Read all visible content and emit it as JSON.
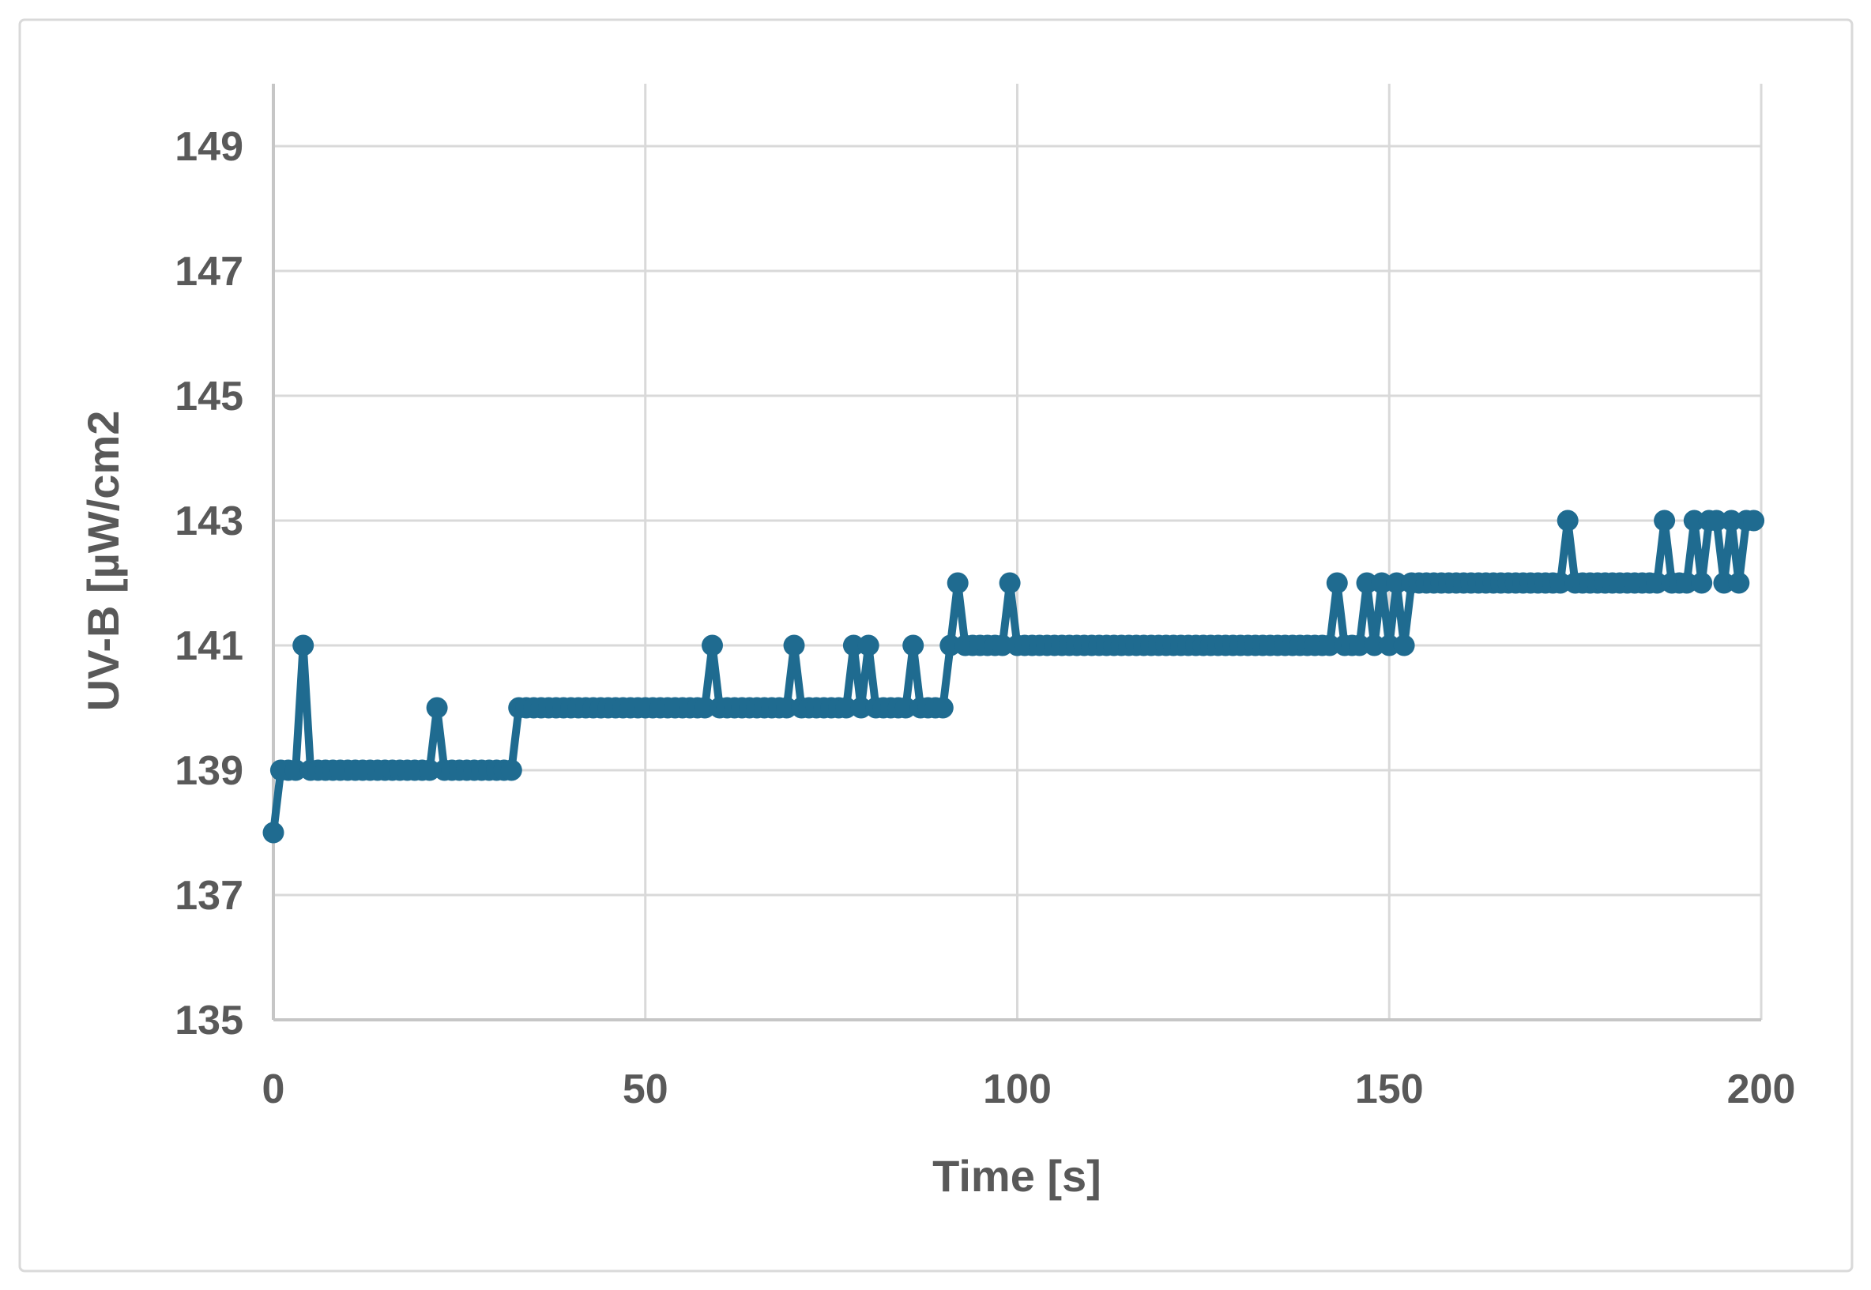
{
  "chart_data": {
    "type": "line",
    "title": "",
    "xlabel": "Time [s]",
    "ylabel": "UV-B [µW/cm2",
    "x_start": 0,
    "x_step": 1,
    "xlim": [
      0,
      200
    ],
    "ylim": [
      135,
      150
    ],
    "x_ticks": [
      "0",
      "50",
      "100",
      "150",
      "200"
    ],
    "x_tick_values": [
      0,
      50,
      100,
      150,
      200
    ],
    "y_ticks": [
      "135",
      "137",
      "139",
      "141",
      "143",
      "145",
      "147",
      "149"
    ],
    "y_tick_values": [
      135,
      137,
      139,
      141,
      143,
      145,
      147,
      149
    ],
    "grid": "both",
    "legend_position": "none",
    "marker": "circle",
    "values": [
      138,
      139,
      139,
      139,
      141,
      139,
      139,
      139,
      139,
      139,
      139,
      139,
      139,
      139,
      139,
      139,
      139,
      139,
      139,
      139,
      139,
      139,
      140,
      139,
      139,
      139,
      139,
      139,
      139,
      139,
      139,
      139,
      139,
      140,
      140,
      140,
      140,
      140,
      140,
      140,
      140,
      140,
      140,
      140,
      140,
      140,
      140,
      140,
      140,
      140,
      140,
      140,
      140,
      140,
      140,
      140,
      140,
      140,
      140,
      141,
      140,
      140,
      140,
      140,
      140,
      140,
      140,
      140,
      140,
      140,
      141,
      140,
      140,
      140,
      140,
      140,
      140,
      140,
      141,
      140,
      141,
      140,
      140,
      140,
      140,
      140,
      141,
      140,
      140,
      140,
      140,
      141,
      142,
      141,
      141,
      141,
      141,
      141,
      141,
      142,
      141,
      141,
      141,
      141,
      141,
      141,
      141,
      141,
      141,
      141,
      141,
      141,
      141,
      141,
      141,
      141,
      141,
      141,
      141,
      141,
      141,
      141,
      141,
      141,
      141,
      141,
      141,
      141,
      141,
      141,
      141,
      141,
      141,
      141,
      141,
      141,
      141,
      141,
      141,
      141,
      141,
      141,
      141,
      142,
      141,
      141,
      141,
      142,
      141,
      142,
      141,
      142,
      141,
      142,
      142,
      142,
      142,
      142,
      142,
      142,
      142,
      142,
      142,
      142,
      142,
      142,
      142,
      142,
      142,
      142,
      142,
      142,
      142,
      142,
      143,
      142,
      142,
      142,
      142,
      142,
      142,
      142,
      142,
      142,
      142,
      142,
      142,
      143,
      142,
      142,
      142,
      143,
      142,
      143,
      143,
      142,
      143,
      142,
      143,
      143
    ]
  },
  "style": {
    "series_color": "#1F6B90",
    "grid_color": "#D9D9D9",
    "axis_line_color": "#C6C6C6",
    "text_color": "#595959",
    "frame_border_color": "#D9D9D9",
    "background_color": "#FFFFFF"
  }
}
